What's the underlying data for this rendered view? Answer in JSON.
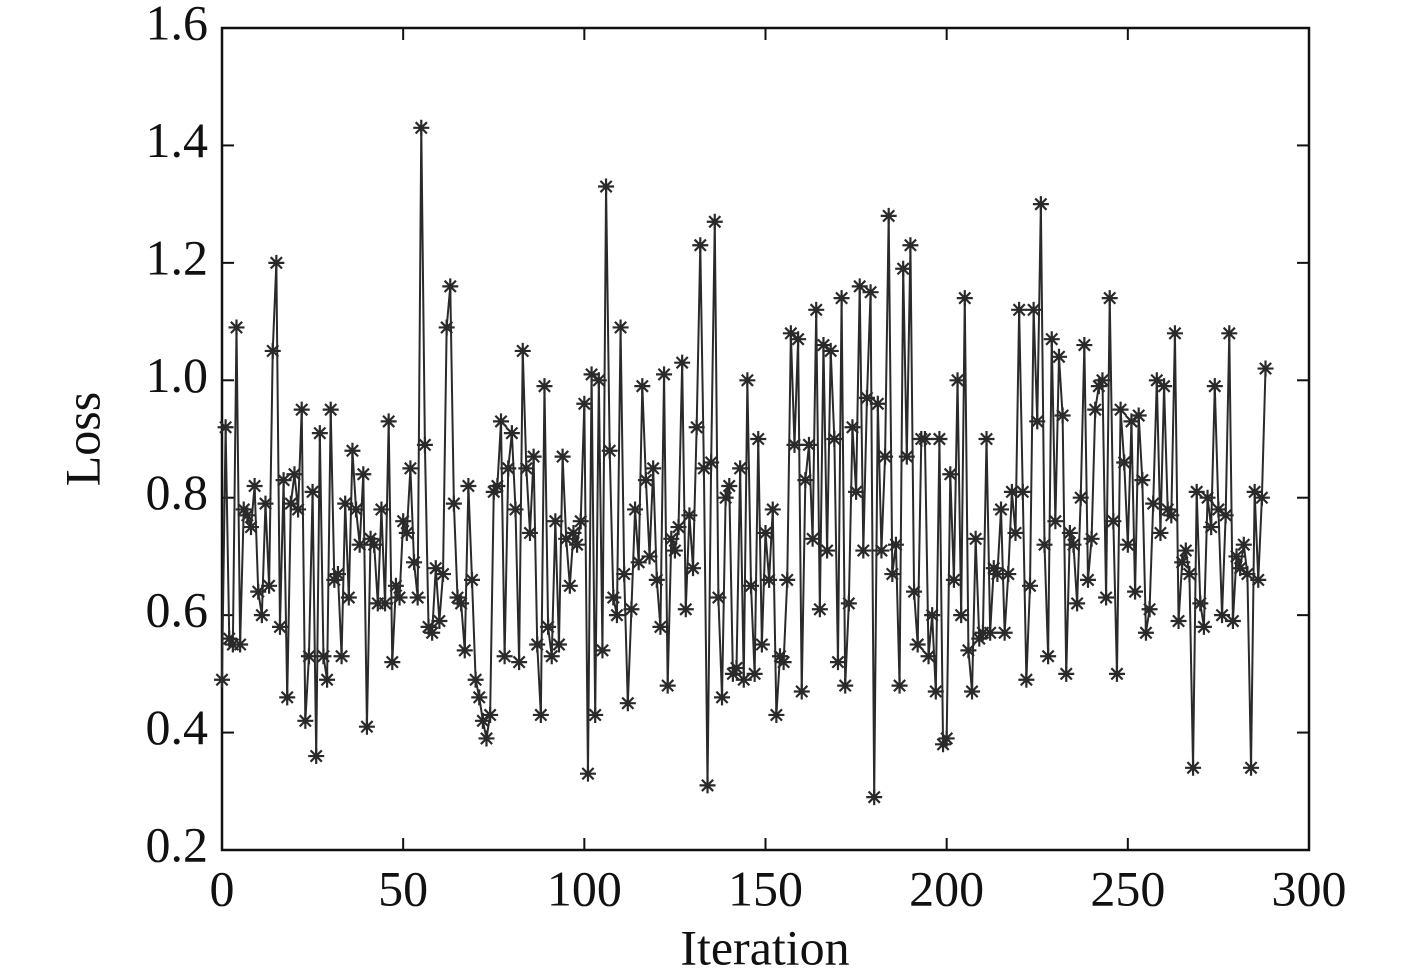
{
  "chart_data": {
    "type": "line",
    "xlabel": "Iteration",
    "ylabel": "Loss",
    "color": "#2a2a2a",
    "xlim": [
      0,
      300
    ],
    "xticks": [
      0,
      50,
      100,
      150,
      200,
      250,
      300
    ],
    "ylim": [
      0.2,
      1.6
    ],
    "yticks": [
      0.2,
      0.4,
      0.6,
      0.8,
      {
        "value": 1,
        "label": "1.0"
      },
      1.2,
      1.4,
      1.6
    ],
    "x": [
      0,
      1,
      2,
      3,
      4,
      5,
      6,
      7,
      8,
      9,
      10,
      11,
      12,
      13,
      14,
      15,
      16,
      17,
      18,
      19,
      20,
      21,
      22,
      23,
      24,
      25,
      26,
      27,
      28,
      29,
      30,
      31,
      32,
      33,
      34,
      35,
      36,
      37,
      38,
      39,
      40,
      41,
      42,
      43,
      44,
      45,
      46,
      47,
      48,
      49,
      50,
      51,
      52,
      53,
      54,
      55,
      56,
      57,
      58,
      59,
      60,
      61,
      62,
      63,
      64,
      65,
      66,
      67,
      68,
      69,
      70,
      71,
      72,
      73,
      74,
      75,
      76,
      77,
      78,
      79,
      80,
      81,
      82,
      83,
      84,
      85,
      86,
      87,
      88,
      89,
      90,
      91,
      92,
      93,
      94,
      95,
      96,
      97,
      98,
      99,
      100,
      101,
      102,
      103,
      104,
      105,
      106,
      107,
      108,
      109,
      110,
      111,
      112,
      113,
      114,
      115,
      116,
      117,
      118,
      119,
      120,
      121,
      122,
      123,
      124,
      125,
      126,
      127,
      128,
      129,
      130,
      131,
      132,
      133,
      134,
      135,
      136,
      137,
      138,
      139,
      140,
      141,
      142,
      143,
      144,
      145,
      146,
      147,
      148,
      149,
      150,
      151,
      152,
      153,
      154,
      155,
      156,
      157,
      158,
      159,
      160,
      161,
      162,
      163,
      164,
      165,
      166,
      167,
      168,
      169,
      170,
      171,
      172,
      173,
      174,
      175,
      176,
      177,
      178,
      179,
      180,
      181,
      182,
      183,
      184,
      185,
      186,
      187,
      188,
      189,
      190,
      191,
      192,
      193,
      194,
      195,
      196,
      197,
      198,
      199,
      200,
      201,
      202,
      203,
      204,
      205,
      206,
      207,
      208,
      209,
      210,
      211,
      212,
      213,
      214,
      215,
      216,
      217,
      218,
      219,
      220,
      221,
      222,
      223,
      224,
      225,
      226,
      227,
      228,
      229,
      230,
      231,
      232,
      233,
      234,
      235,
      236,
      237,
      238,
      239,
      240,
      241,
      242,
      243,
      244,
      245,
      246,
      247,
      248,
      249,
      250,
      251,
      252,
      253,
      254,
      255,
      256,
      257,
      258,
      259,
      260,
      261,
      262,
      263,
      264,
      265,
      266,
      267,
      268,
      269,
      270,
      271,
      272,
      273,
      274,
      275,
      276,
      277,
      278,
      279,
      280,
      281,
      282,
      283,
      284,
      285,
      286,
      287,
      288
    ],
    "values": [
      0.49,
      0.92,
      0.56,
      0.55,
      1.09,
      0.55,
      0.78,
      0.77,
      0.75,
      0.82,
      0.64,
      0.6,
      0.79,
      0.65,
      1.05,
      1.2,
      0.58,
      0.83,
      0.46,
      0.79,
      0.84,
      0.78,
      0.95,
      0.42,
      0.53,
      0.81,
      0.36,
      0.91,
      0.53,
      0.49,
      0.95,
      0.66,
      0.67,
      0.53,
      0.79,
      0.63,
      0.88,
      0.78,
      0.72,
      0.84,
      0.41,
      0.73,
      0.72,
      0.62,
      0.78,
      0.62,
      0.93,
      0.52,
      0.65,
      0.63,
      0.76,
      0.74,
      0.85,
      0.69,
      0.63,
      1.43,
      0.89,
      0.58,
      0.57,
      0.68,
      0.59,
      0.67,
      1.09,
      1.16,
      0.79,
      0.63,
      0.62,
      0.54,
      0.82,
      0.66,
      0.49,
      0.46,
      0.42,
      0.39,
      0.43,
      0.81,
      0.82,
      0.93,
      0.53,
      0.85,
      0.91,
      0.78,
      0.52,
      1.05,
      0.85,
      0.74,
      0.87,
      0.55,
      0.43,
      0.99,
      0.58,
      0.53,
      0.76,
      0.55,
      0.87,
      0.73,
      0.65,
      0.74,
      0.72,
      0.76,
      0.96,
      0.33,
      1.01,
      0.43,
      1.0,
      0.54,
      1.33,
      0.88,
      0.63,
      0.6,
      1.09,
      0.67,
      0.45,
      0.61,
      0.78,
      0.69,
      0.99,
      0.83,
      0.7,
      0.85,
      0.66,
      0.58,
      1.01,
      0.48,
      0.73,
      0.71,
      0.75,
      1.03,
      0.61,
      0.77,
      0.68,
      0.92,
      1.23,
      0.85,
      0.31,
      0.86,
      1.27,
      0.63,
      0.46,
      0.8,
      0.82,
      0.5,
      0.51,
      0.85,
      0.49,
      1.0,
      0.65,
      0.5,
      0.9,
      0.55,
      0.74,
      0.66,
      0.78,
      0.43,
      0.53,
      0.52,
      0.66,
      1.08,
      0.89,
      1.07,
      0.47,
      0.83,
      0.89,
      0.73,
      1.12,
      0.61,
      1.06,
      0.71,
      1.05,
      0.9,
      0.52,
      1.14,
      0.48,
      0.62,
      0.92,
      0.81,
      1.16,
      0.71,
      0.97,
      1.15,
      0.29,
      0.96,
      0.71,
      0.87,
      1.28,
      0.67,
      0.72,
      0.48,
      1.19,
      0.87,
      1.23,
      0.64,
      0.55,
      0.9,
      0.9,
      0.53,
      0.6,
      0.47,
      0.9,
      0.38,
      0.39,
      0.84,
      0.66,
      1.0,
      0.6,
      1.14,
      0.54,
      0.47,
      0.73,
      0.56,
      0.57,
      0.9,
      0.57,
      0.68,
      0.67,
      0.78,
      0.57,
      0.67,
      0.81,
      0.74,
      1.12,
      0.81,
      0.49,
      0.65,
      1.12,
      0.93,
      1.3,
      0.72,
      0.53,
      1.07,
      0.76,
      1.04,
      0.94,
      0.5,
      0.74,
      0.72,
      0.62,
      0.8,
      1.06,
      0.66,
      0.73,
      0.95,
      0.99,
      1.0,
      0.63,
      1.14,
      0.76,
      0.5,
      0.95,
      0.86,
      0.72,
      0.93,
      0.64,
      0.94,
      0.83,
      0.57,
      0.61,
      0.79,
      1.0,
      0.74,
      0.99,
      0.78,
      0.77,
      1.08,
      0.59,
      0.69,
      0.71,
      0.67,
      0.34,
      0.81,
      0.62,
      0.58,
      0.8,
      0.75,
      0.99,
      0.78,
      0.6,
      0.77,
      1.08,
      0.59,
      0.7,
      0.68,
      0.72,
      0.67,
      0.34,
      0.81,
      0.66,
      0.8,
      1.02
    ]
  }
}
